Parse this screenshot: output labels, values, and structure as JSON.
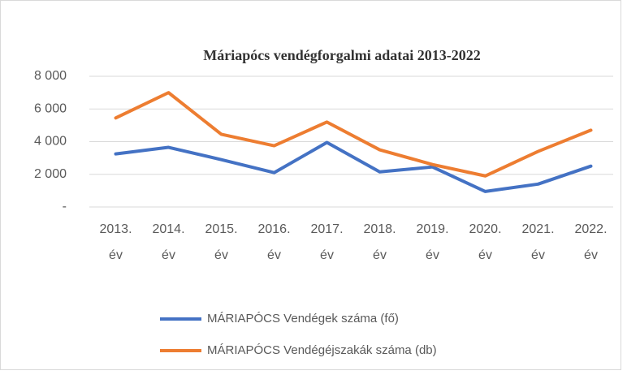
{
  "chart_data": {
    "type": "line",
    "title": "Máriapócs vendégforgalmi adatai 2013-2022",
    "categories": [
      "2013. év",
      "2014. év",
      "2015. év",
      "2016. év",
      "2017. év",
      "2018. év",
      "2019. év",
      "2020. év",
      "2021. év",
      "2022. év"
    ],
    "series": [
      {
        "name": "MÁRIAPÓCS Vendégek száma  (fő)",
        "color": "#4472c4",
        "values": [
          3250,
          3650,
          2900,
          2100,
          3950,
          2150,
          2450,
          950,
          1400,
          2500
        ]
      },
      {
        "name": "MÁRIAPÓCS Vendégéjszakák száma  (db)",
        "color": "#ed7d31",
        "values": [
          5450,
          7000,
          4450,
          3750,
          5200,
          3500,
          2600,
          1900,
          3400,
          4700
        ]
      }
    ],
    "ylim": [
      0,
      8000
    ],
    "yticks": [
      {
        "value": 0,
        "label": "-"
      },
      {
        "value": 2000,
        "label": "2 000"
      },
      {
        "value": 4000,
        "label": "4 000"
      },
      {
        "value": 6000,
        "label": "6 000"
      },
      {
        "value": 8000,
        "label": "8 000"
      }
    ],
    "grid": true,
    "legend": "bottom"
  }
}
